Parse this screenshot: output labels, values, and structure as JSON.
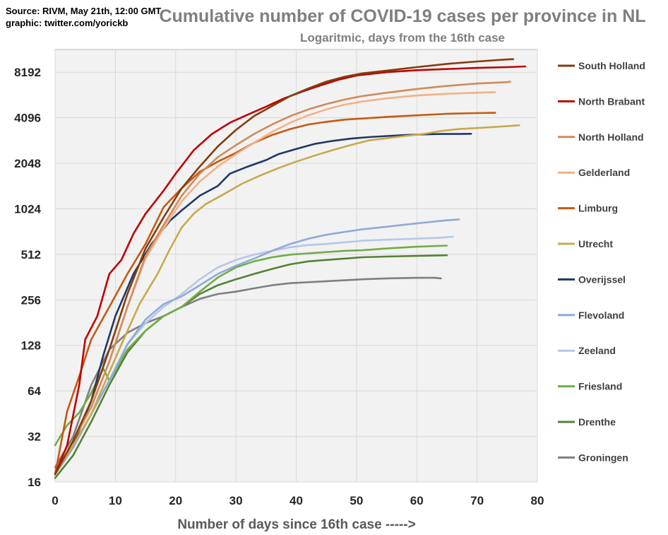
{
  "source_lines": [
    "Source: RIVM, May 21th, 12:00  GMT",
    "graphic: twitter.com/yorickb"
  ],
  "chart_data": {
    "type": "line",
    "title": "Cumulative number of COVID-19 cases per province in NL",
    "subtitle": "Logaritmic,   days from the 16th case",
    "xlabel": "Number of days since 16th case   ----->",
    "ylabel": "",
    "yscale": "log2",
    "xlim": [
      0,
      80
    ],
    "ylim": [
      16,
      11585
    ],
    "xticks": [
      0,
      10,
      20,
      30,
      40,
      50,
      60,
      70,
      80
    ],
    "yticks": [
      16,
      32,
      64,
      128,
      256,
      512,
      1024,
      2048,
      4096,
      8192
    ],
    "grid": true,
    "legend_position": "right",
    "series": [
      {
        "name": "South Holland",
        "color": "#843c0c",
        "points": [
          [
            0,
            18
          ],
          [
            3,
            30
          ],
          [
            6,
            55
          ],
          [
            9,
            120
          ],
          [
            12,
            280
          ],
          [
            15,
            560
          ],
          [
            18,
            900
          ],
          [
            21,
            1400
          ],
          [
            24,
            1950
          ],
          [
            27,
            2650
          ],
          [
            30,
            3400
          ],
          [
            33,
            4200
          ],
          [
            36,
            4900
          ],
          [
            39,
            5700
          ],
          [
            42,
            6400
          ],
          [
            45,
            7100
          ],
          [
            48,
            7650
          ],
          [
            51,
            8050
          ],
          [
            55,
            8400
          ],
          [
            60,
            8850
          ],
          [
            65,
            9300
          ],
          [
            70,
            9650
          ],
          [
            75,
            9950
          ],
          [
            76,
            10000
          ]
        ]
      },
      {
        "name": "North Brabant",
        "color": "#c00000",
        "points": [
          [
            0,
            18
          ],
          [
            2,
            28
          ],
          [
            4,
            70
          ],
          [
            5,
            140
          ],
          [
            7,
            200
          ],
          [
            9,
            380
          ],
          [
            11,
            470
          ],
          [
            13,
            700
          ],
          [
            15,
            950
          ],
          [
            18,
            1350
          ],
          [
            20,
            1750
          ],
          [
            23,
            2500
          ],
          [
            26,
            3200
          ],
          [
            29,
            3800
          ],
          [
            32,
            4300
          ],
          [
            35,
            4850
          ],
          [
            38,
            5500
          ],
          [
            41,
            6100
          ],
          [
            44,
            6700
          ],
          [
            47,
            7300
          ],
          [
            50,
            7800
          ],
          [
            55,
            8200
          ],
          [
            60,
            8450
          ],
          [
            65,
            8600
          ],
          [
            70,
            8750
          ],
          [
            75,
            8850
          ],
          [
            78,
            8950
          ]
        ]
      },
      {
        "name": "North Holland",
        "color": "#d08b5b",
        "points": [
          [
            0,
            18
          ],
          [
            3,
            30
          ],
          [
            6,
            50
          ],
          [
            9,
            100
          ],
          [
            12,
            230
          ],
          [
            15,
            500
          ],
          [
            18,
            800
          ],
          [
            21,
            1250
          ],
          [
            24,
            1750
          ],
          [
            27,
            2250
          ],
          [
            30,
            2700
          ],
          [
            33,
            3200
          ],
          [
            36,
            3700
          ],
          [
            39,
            4200
          ],
          [
            42,
            4650
          ],
          [
            45,
            5050
          ],
          [
            48,
            5400
          ],
          [
            51,
            5700
          ],
          [
            55,
            6000
          ],
          [
            60,
            6350
          ],
          [
            65,
            6650
          ],
          [
            70,
            6900
          ],
          [
            75,
            7050
          ],
          [
            75.5,
            7100
          ]
        ]
      },
      {
        "name": "Gelderland",
        "color": "#f4b183",
        "points": [
          [
            0,
            18
          ],
          [
            3,
            30
          ],
          [
            6,
            50
          ],
          [
            9,
            100
          ],
          [
            12,
            230
          ],
          [
            15,
            480
          ],
          [
            18,
            760
          ],
          [
            21,
            1150
          ],
          [
            24,
            1550
          ],
          [
            27,
            1950
          ],
          [
            30,
            2350
          ],
          [
            33,
            2800
          ],
          [
            36,
            3300
          ],
          [
            39,
            3800
          ],
          [
            42,
            4250
          ],
          [
            45,
            4650
          ],
          [
            48,
            5000
          ],
          [
            51,
            5250
          ],
          [
            55,
            5500
          ],
          [
            60,
            5750
          ],
          [
            65,
            5900
          ],
          [
            70,
            6000
          ],
          [
            73,
            6050
          ]
        ]
      },
      {
        "name": "Limburg",
        "color": "#c55a11",
        "points": [
          [
            0,
            18
          ],
          [
            2,
            47
          ],
          [
            4,
            80
          ],
          [
            6,
            140
          ],
          [
            9,
            230
          ],
          [
            12,
            380
          ],
          [
            15,
            600
          ],
          [
            18,
            1050
          ],
          [
            21,
            1400
          ],
          [
            24,
            1800
          ],
          [
            27,
            2100
          ],
          [
            30,
            2400
          ],
          [
            33,
            2800
          ],
          [
            36,
            3150
          ],
          [
            39,
            3450
          ],
          [
            42,
            3700
          ],
          [
            45,
            3850
          ],
          [
            48,
            3980
          ],
          [
            51,
            4050
          ],
          [
            55,
            4150
          ],
          [
            60,
            4250
          ],
          [
            65,
            4350
          ],
          [
            70,
            4400
          ],
          [
            73,
            4420
          ]
        ]
      },
      {
        "name": "Utrecht",
        "color": "#c9a94d",
        "points": [
          [
            0,
            18
          ],
          [
            3,
            28
          ],
          [
            6,
            45
          ],
          [
            9,
            85
          ],
          [
            11,
            130
          ],
          [
            14,
            240
          ],
          [
            17,
            380
          ],
          [
            19,
            550
          ],
          [
            21,
            770
          ],
          [
            23,
            950
          ],
          [
            25,
            1100
          ],
          [
            28,
            1280
          ],
          [
            31,
            1500
          ],
          [
            34,
            1700
          ],
          [
            37,
            1900
          ],
          [
            40,
            2100
          ],
          [
            43,
            2300
          ],
          [
            46,
            2500
          ],
          [
            49,
            2700
          ],
          [
            52,
            2900
          ],
          [
            55,
            3000
          ],
          [
            58,
            3100
          ],
          [
            61,
            3200
          ],
          [
            64,
            3350
          ],
          [
            67,
            3450
          ],
          [
            70,
            3500
          ],
          [
            74,
            3580
          ],
          [
            77,
            3650
          ]
        ]
      },
      {
        "name": "Overijssel",
        "color": "#1f3864",
        "points": [
          [
            0,
            18
          ],
          [
            3,
            28
          ],
          [
            6,
            55
          ],
          [
            8,
            110
          ],
          [
            10,
            200
          ],
          [
            13,
            380
          ],
          [
            16,
            600
          ],
          [
            19,
            850
          ],
          [
            21,
            1000
          ],
          [
            24,
            1250
          ],
          [
            27,
            1450
          ],
          [
            29,
            1750
          ],
          [
            32,
            1950
          ],
          [
            35,
            2150
          ],
          [
            37,
            2350
          ],
          [
            40,
            2550
          ],
          [
            43,
            2750
          ],
          [
            46,
            2880
          ],
          [
            49,
            2980
          ],
          [
            52,
            3050
          ],
          [
            55,
            3100
          ],
          [
            58,
            3150
          ],
          [
            61,
            3180
          ],
          [
            64,
            3200
          ],
          [
            67,
            3200
          ],
          [
            69,
            3210
          ]
        ]
      },
      {
        "name": "Flevoland",
        "color": "#8eaadb",
        "points": [
          [
            0,
            18
          ],
          [
            3,
            27
          ],
          [
            6,
            45
          ],
          [
            9,
            75
          ],
          [
            12,
            130
          ],
          [
            15,
            190
          ],
          [
            18,
            240
          ],
          [
            21,
            270
          ],
          [
            24,
            320
          ],
          [
            27,
            380
          ],
          [
            30,
            430
          ],
          [
            33,
            480
          ],
          [
            36,
            540
          ],
          [
            39,
            600
          ],
          [
            42,
            650
          ],
          [
            45,
            690
          ],
          [
            48,
            720
          ],
          [
            51,
            750
          ],
          [
            55,
            780
          ],
          [
            60,
            820
          ],
          [
            65,
            860
          ],
          [
            67,
            870
          ]
        ]
      },
      {
        "name": "Zeeland",
        "color": "#b4c7e7",
        "points": [
          [
            0,
            18
          ],
          [
            3,
            27
          ],
          [
            6,
            45
          ],
          [
            9,
            75
          ],
          [
            12,
            130
          ],
          [
            15,
            180
          ],
          [
            18,
            230
          ],
          [
            21,
            280
          ],
          [
            24,
            350
          ],
          [
            27,
            420
          ],
          [
            30,
            470
          ],
          [
            33,
            510
          ],
          [
            36,
            540
          ],
          [
            39,
            570
          ],
          [
            42,
            590
          ],
          [
            45,
            600
          ],
          [
            48,
            615
          ],
          [
            51,
            630
          ],
          [
            55,
            640
          ],
          [
            60,
            650
          ],
          [
            64,
            660
          ],
          [
            66,
            670
          ]
        ]
      },
      {
        "name": "Friesland",
        "color": "#70ad47",
        "points": [
          [
            0,
            28
          ],
          [
            2,
            38
          ],
          [
            4,
            46
          ],
          [
            6,
            62
          ],
          [
            8,
            90
          ],
          [
            9,
            75
          ],
          [
            12,
            120
          ],
          [
            15,
            160
          ],
          [
            18,
            200
          ],
          [
            21,
            230
          ],
          [
            24,
            290
          ],
          [
            27,
            360
          ],
          [
            30,
            420
          ],
          [
            33,
            460
          ],
          [
            36,
            490
          ],
          [
            39,
            510
          ],
          [
            42,
            520
          ],
          [
            45,
            530
          ],
          [
            48,
            540
          ],
          [
            51,
            545
          ],
          [
            55,
            560
          ],
          [
            60,
            575
          ],
          [
            65,
            585
          ]
        ]
      },
      {
        "name": "Drenthe",
        "color": "#548235",
        "points": [
          [
            0,
            17
          ],
          [
            3,
            24
          ],
          [
            6,
            40
          ],
          [
            9,
            70
          ],
          [
            12,
            115
          ],
          [
            15,
            160
          ],
          [
            18,
            200
          ],
          [
            21,
            230
          ],
          [
            24,
            280
          ],
          [
            27,
            320
          ],
          [
            30,
            350
          ],
          [
            33,
            380
          ],
          [
            36,
            410
          ],
          [
            39,
            440
          ],
          [
            42,
            460
          ],
          [
            45,
            470
          ],
          [
            48,
            480
          ],
          [
            51,
            490
          ],
          [
            55,
            495
          ],
          [
            60,
            500
          ],
          [
            65,
            505
          ]
        ]
      },
      {
        "name": "Groningen",
        "color": "#7f7f7f",
        "points": [
          [
            0,
            20
          ],
          [
            3,
            32
          ],
          [
            6,
            70
          ],
          [
            9,
            120
          ],
          [
            12,
            155
          ],
          [
            15,
            180
          ],
          [
            18,
            200
          ],
          [
            21,
            230
          ],
          [
            24,
            260
          ],
          [
            27,
            280
          ],
          [
            30,
            290
          ],
          [
            33,
            305
          ],
          [
            36,
            320
          ],
          [
            39,
            330
          ],
          [
            42,
            335
          ],
          [
            45,
            340
          ],
          [
            48,
            345
          ],
          [
            51,
            350
          ],
          [
            55,
            355
          ],
          [
            60,
            358
          ],
          [
            63,
            358
          ],
          [
            64,
            355
          ]
        ]
      }
    ]
  }
}
